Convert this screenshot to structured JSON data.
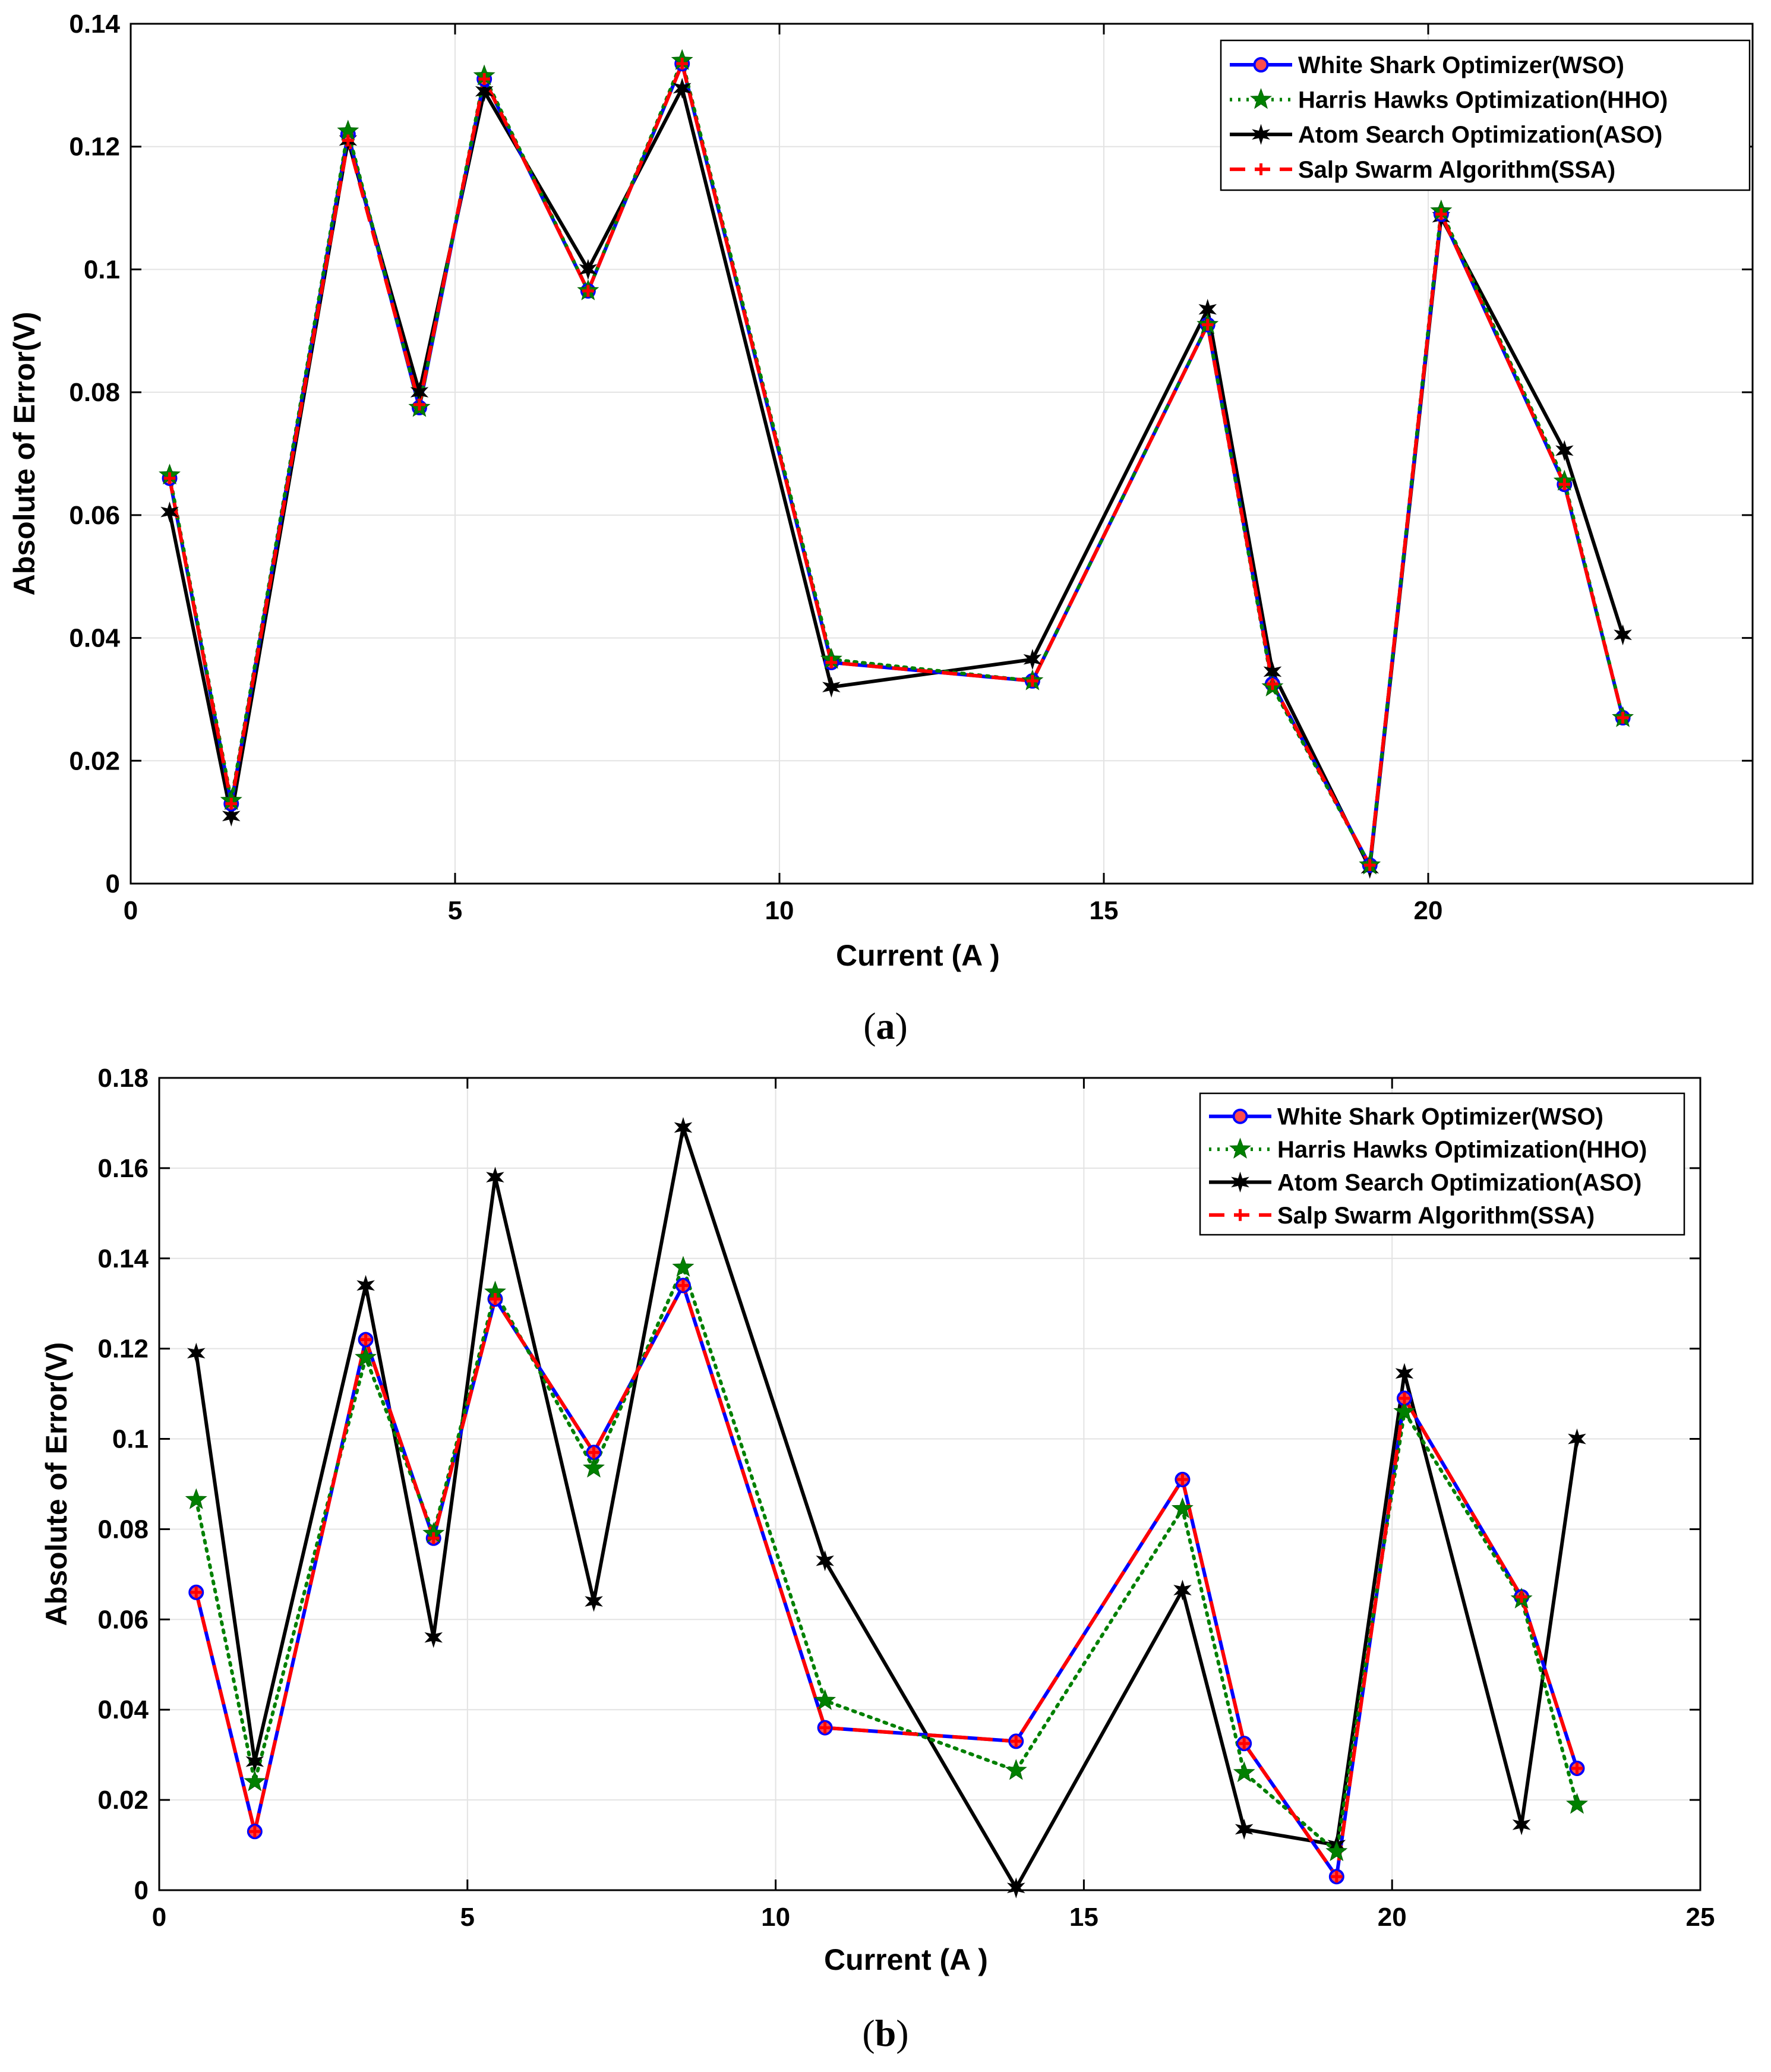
{
  "captions": {
    "a": "a",
    "b": "b"
  },
  "colors": {
    "wso": "#0000ff",
    "hho": "#008000",
    "aso": "#000000",
    "ssa": "#ff0000"
  },
  "chart_data": [
    {
      "type": "line",
      "panel": "a",
      "title": "",
      "xlabel": "Current (A )",
      "ylabel": "Absolute of Error(V)",
      "xlim": [
        0,
        25
      ],
      "ylim": [
        0,
        0.14
      ],
      "xticks": [
        0,
        5,
        10,
        15,
        20
      ],
      "xtick_labels": [
        "0",
        "5",
        "10",
        "15",
        "20"
      ],
      "yticks": [
        0,
        0.02,
        0.04,
        0.06,
        0.08,
        0.1,
        0.12,
        0.14
      ],
      "ytick_labels": [
        "0",
        "0.02",
        "0.04",
        "0.06",
        "0.08",
        "0.1",
        "0.12",
        "0.14"
      ],
      "grid": true,
      "legend": "top-right",
      "x": [
        0.6,
        1.55,
        3.35,
        4.45,
        5.45,
        7.05,
        8.5,
        10.8,
        13.9,
        16.6,
        17.6,
        19.1,
        20.2,
        22.1,
        23.0
      ],
      "series": [
        {
          "key": "wso",
          "name": "White Shark Optimizer(WSO)",
          "style": "solid",
          "marker": "circle",
          "values": [
            0.066,
            0.013,
            0.122,
            0.0775,
            0.131,
            0.0965,
            0.1335,
            0.036,
            0.033,
            0.091,
            0.0325,
            0.003,
            0.109,
            0.065,
            0.027
          ]
        },
        {
          "key": "hho",
          "name": "Harris Hawks Optimization(HHO)",
          "style": "dotted",
          "marker": "star",
          "values": [
            0.0665,
            0.0135,
            0.1225,
            0.0775,
            0.1315,
            0.0965,
            0.134,
            0.0365,
            0.033,
            0.091,
            0.032,
            0.003,
            0.1095,
            0.0655,
            0.027
          ]
        },
        {
          "key": "aso",
          "name": "Atom Search Optimization(ASO)",
          "style": "solid",
          "marker": "hexstar",
          "values": [
            0.0605,
            0.011,
            0.121,
            0.08,
            0.129,
            0.1,
            0.1295,
            0.032,
            0.0365,
            0.0935,
            0.0345,
            0.0025,
            0.1085,
            0.0705,
            0.0405
          ]
        },
        {
          "key": "ssa",
          "name": "Salp Swarm Algorithm(SSA)",
          "style": "dashed",
          "marker": "plus",
          "values": [
            0.066,
            0.013,
            0.121,
            0.078,
            0.131,
            0.0965,
            0.1335,
            0.036,
            0.033,
            0.091,
            0.0325,
            0.003,
            0.109,
            0.065,
            0.027
          ]
        }
      ]
    },
    {
      "type": "line",
      "panel": "b",
      "title": "",
      "xlabel": "Current (A )",
      "ylabel": "Absolute of Error(V)",
      "xlim": [
        0,
        25
      ],
      "ylim": [
        0,
        0.18
      ],
      "xticks": [
        0,
        5,
        10,
        15,
        20,
        25
      ],
      "xtick_labels": [
        "0",
        "5",
        "10",
        "15",
        "20",
        "25"
      ],
      "yticks": [
        0,
        0.02,
        0.04,
        0.06,
        0.08,
        0.1,
        0.12,
        0.14,
        0.16,
        0.18
      ],
      "ytick_labels": [
        "0",
        "0.02",
        "0.04",
        "0.06",
        "0.08",
        "0.1",
        "0.12",
        "0.14",
        "0.16",
        "0.18"
      ],
      "grid": true,
      "legend": "top-right",
      "x": [
        0.6,
        1.55,
        3.35,
        4.45,
        5.45,
        7.05,
        8.5,
        10.8,
        13.9,
        16.6,
        17.6,
        19.1,
        20.2,
        22.1,
        23.0
      ],
      "series": [
        {
          "key": "wso",
          "name": "White Shark Optimizer(WSO)",
          "style": "solid",
          "marker": "circle",
          "values": [
            0.066,
            0.013,
            0.122,
            0.078,
            0.131,
            0.097,
            0.134,
            0.036,
            0.033,
            0.091,
            0.0325,
            0.003,
            0.109,
            0.065,
            0.027
          ]
        },
        {
          "key": "hho",
          "name": "Harris Hawks Optimization(HHO)",
          "style": "dotted",
          "marker": "star",
          "values": [
            0.0865,
            0.024,
            0.118,
            0.079,
            0.1325,
            0.0935,
            0.138,
            0.042,
            0.0265,
            0.0845,
            0.026,
            0.0085,
            0.106,
            0.0645,
            0.019
          ]
        },
        {
          "key": "aso",
          "name": "Atom Search Optimization(ASO)",
          "style": "solid",
          "marker": "hexstar",
          "values": [
            0.119,
            0.0285,
            0.134,
            0.056,
            0.158,
            0.064,
            0.169,
            0.073,
            0.0005,
            0.0665,
            0.0135,
            0.01,
            0.1145,
            0.0145,
            0.1
          ]
        },
        {
          "key": "ssa",
          "name": "Salp Swarm Algorithm(SSA)",
          "style": "dashed",
          "marker": "plus",
          "values": [
            0.066,
            0.013,
            0.122,
            0.078,
            0.131,
            0.097,
            0.134,
            0.036,
            0.033,
            0.091,
            0.0325,
            0.003,
            0.109,
            0.065,
            0.027
          ]
        }
      ]
    }
  ]
}
